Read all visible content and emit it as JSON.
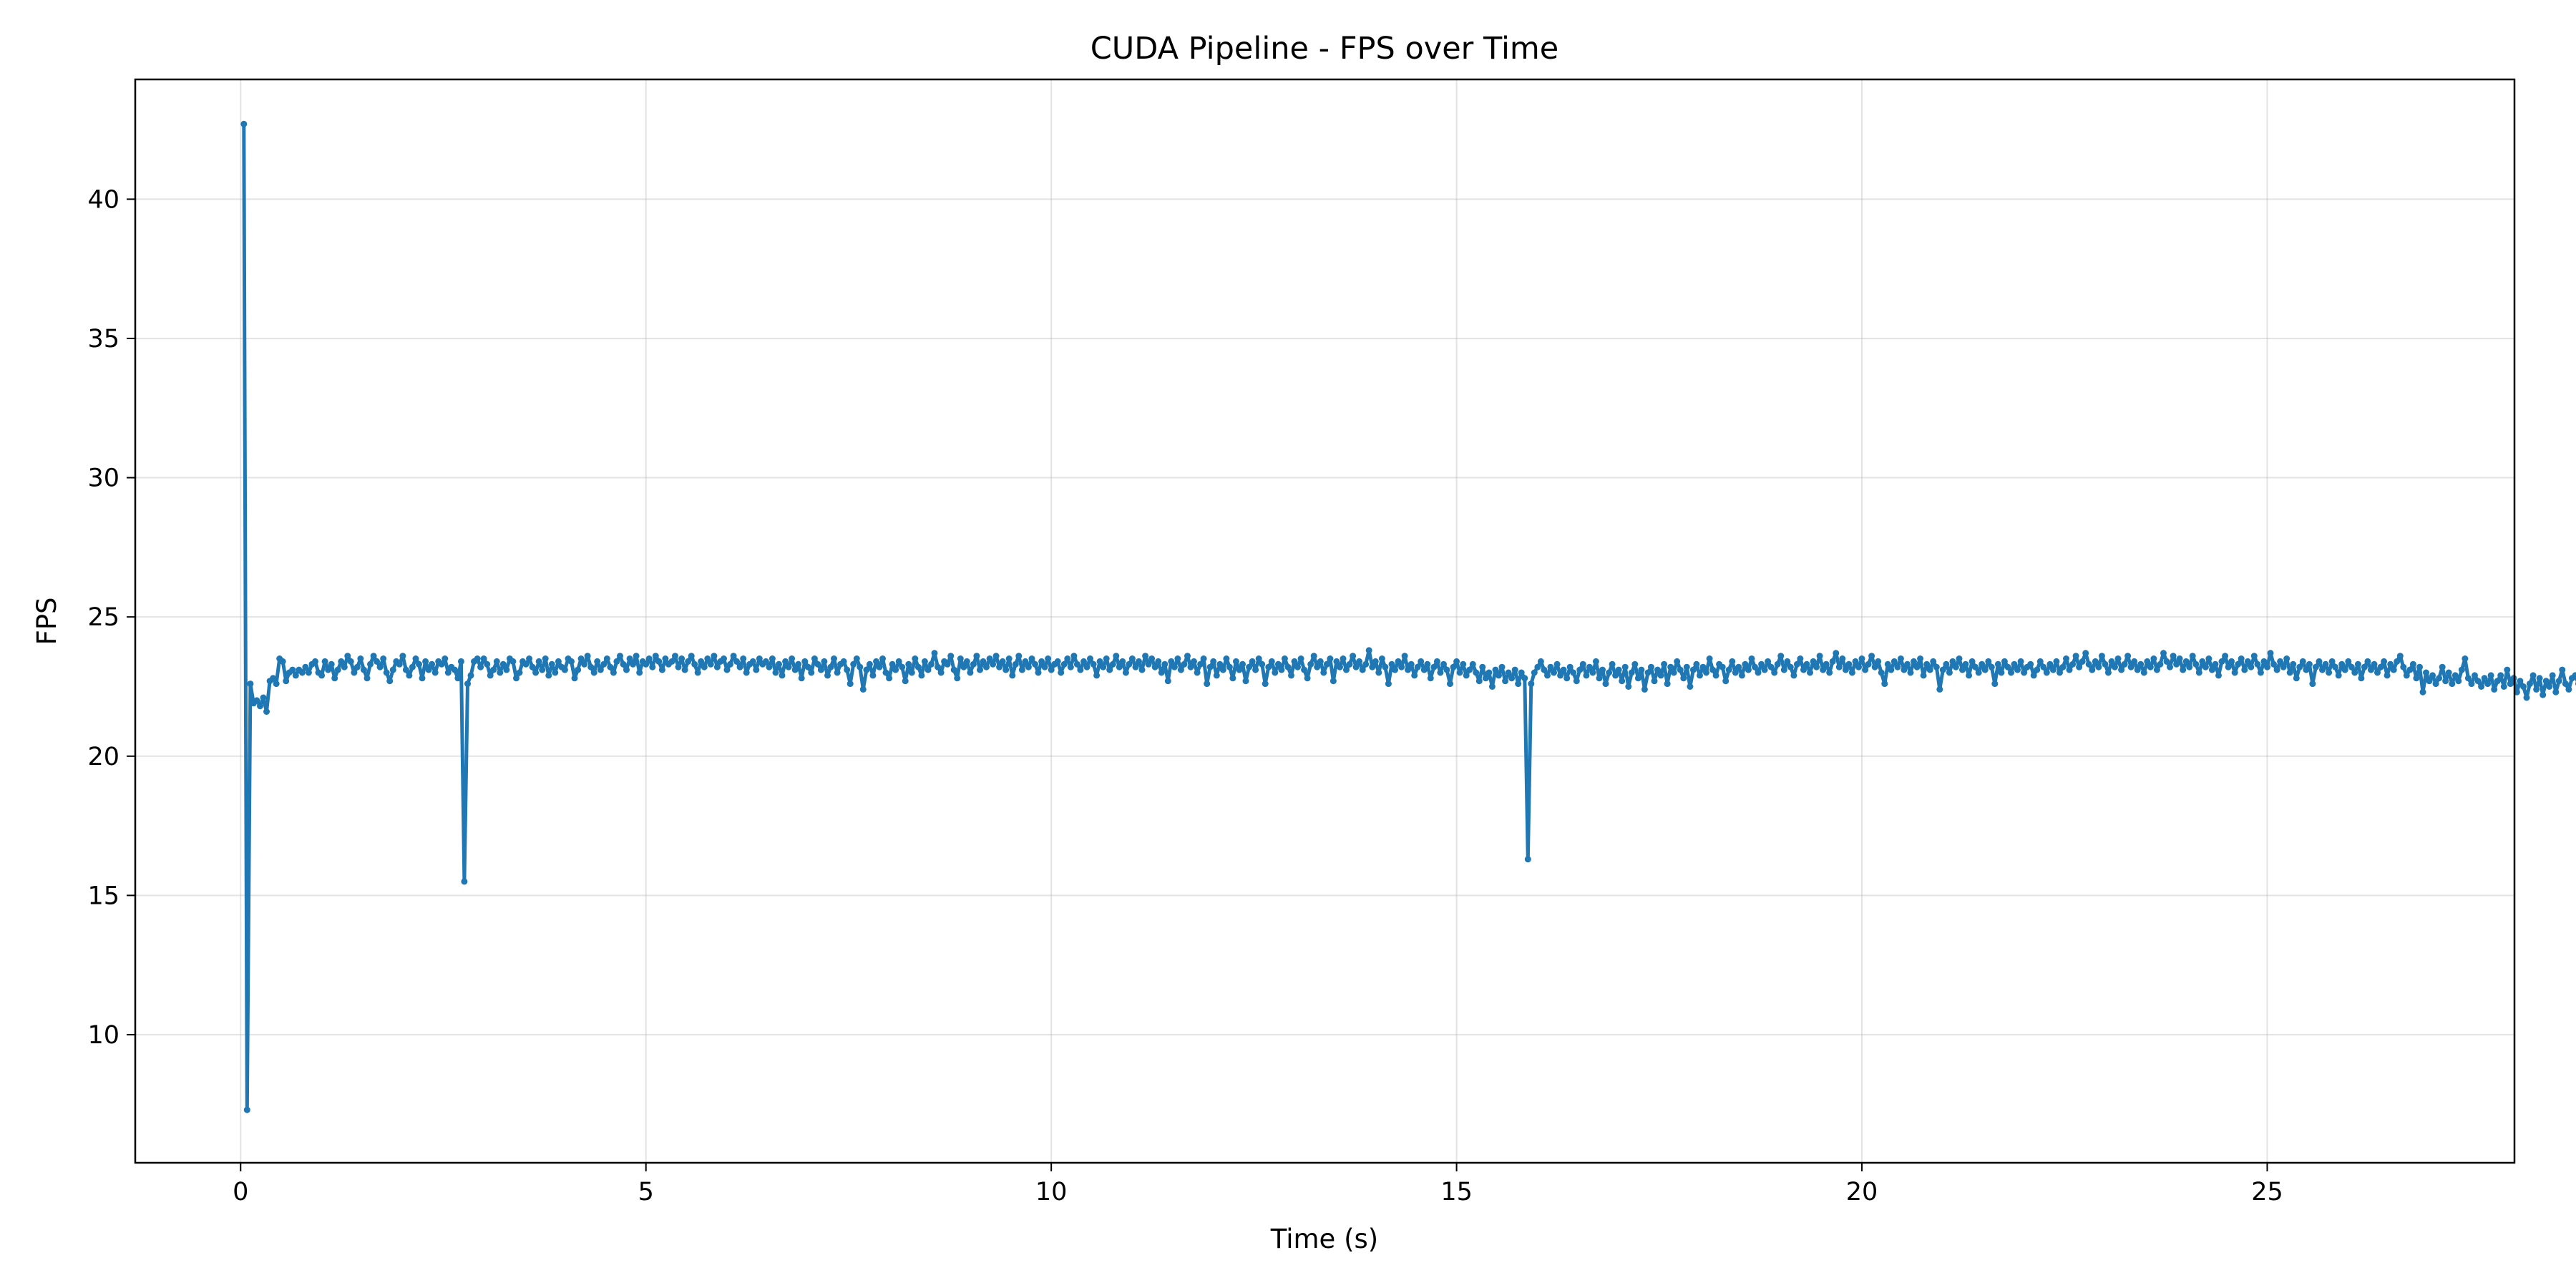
{
  "chart_data": {
    "type": "line",
    "title": "CUDA Pipeline - FPS over Time",
    "xlabel": "Time (s)",
    "ylabel": "FPS",
    "xlim": [
      -1.3,
      28.05
    ],
    "ylim": [
      5.4,
      44.3
    ],
    "xticks": [
      0,
      5,
      10,
      15,
      20,
      25
    ],
    "xtick_labels": [
      "0",
      "5",
      "10",
      "15",
      "20",
      "25"
    ],
    "yticks": [
      10,
      15,
      20,
      25,
      30,
      35,
      40
    ],
    "ytick_labels": [
      "10",
      "15",
      "20",
      "25",
      "30",
      "35",
      "40"
    ],
    "grid": true,
    "legend": "none",
    "color": "#1f77b4",
    "markers": true,
    "series": [
      {
        "x_start": 0.04,
        "x_step": 0.04,
        "values": [
          42.7,
          7.3,
          22.6,
          21.9,
          22.0,
          21.8,
          22.1,
          21.6,
          22.7,
          22.8,
          22.6,
          23.5,
          23.4,
          22.7,
          23.0,
          23.1,
          22.9,
          23.1,
          23.0,
          23.2,
          23.0,
          23.3,
          23.4,
          23.0,
          22.9,
          23.4,
          23.1,
          23.3,
          22.8,
          23.1,
          23.4,
          23.2,
          23.6,
          23.4,
          23.0,
          23.2,
          23.5,
          23.1,
          22.8,
          23.3,
          23.6,
          23.4,
          23.2,
          23.5,
          23.0,
          22.7,
          23.1,
          23.4,
          23.3,
          23.6,
          23.1,
          22.9,
          23.2,
          23.5,
          23.3,
          22.8,
          23.4,
          23.1,
          23.3,
          23.0,
          23.4,
          23.3,
          23.5,
          23.0,
          23.2,
          23.1,
          22.8,
          23.4,
          15.5,
          22.6,
          22.9,
          23.4,
          23.5,
          23.2,
          23.5,
          23.3,
          22.9,
          23.1,
          23.4,
          23.0,
          23.3,
          23.1,
          23.5,
          23.4,
          22.8,
          23.0,
          23.4,
          23.3,
          23.5,
          23.2,
          23.0,
          23.4,
          23.1,
          23.5,
          22.9,
          23.3,
          23.0,
          23.4,
          23.2,
          23.1,
          23.5,
          23.4,
          22.8,
          23.1,
          23.5,
          23.3,
          23.6,
          23.2,
          23.0,
          23.4,
          23.1,
          23.3,
          23.5,
          23.2,
          23.0,
          23.4,
          23.6,
          23.3,
          23.1,
          23.5,
          23.3,
          23.6,
          23.0,
          23.4,
          23.3,
          23.5,
          23.2,
          23.6,
          23.4,
          23.1,
          23.5,
          23.3,
          23.4,
          23.6,
          23.2,
          23.5,
          23.1,
          23.4,
          23.6,
          23.3,
          23.0,
          23.4,
          23.2,
          23.5,
          23.3,
          23.6,
          23.2,
          23.4,
          23.5,
          23.1,
          23.3,
          23.6,
          23.4,
          23.2,
          23.5,
          23.0,
          23.3,
          23.4,
          23.1,
          23.5,
          23.3,
          23.4,
          23.2,
          23.5,
          23.0,
          23.3,
          22.9,
          23.4,
          23.2,
          23.5,
          23.1,
          23.3,
          22.8,
          23.4,
          23.2,
          23.0,
          23.5,
          23.3,
          23.1,
          23.4,
          22.9,
          23.2,
          23.5,
          23.0,
          23.3,
          23.4,
          23.1,
          22.6,
          23.3,
          23.5,
          23.2,
          22.4,
          23.1,
          23.3,
          22.9,
          23.4,
          23.2,
          23.5,
          23.0,
          22.8,
          23.3,
          23.1,
          23.4,
          23.2,
          22.7,
          23.3,
          23.0,
          23.5,
          23.2,
          22.9,
          23.4,
          23.1,
          23.3,
          23.7,
          23.2,
          23.0,
          23.4,
          23.3,
          23.6,
          23.1,
          22.8,
          23.5,
          23.2,
          23.4,
          23.0,
          23.3,
          23.6,
          23.1,
          23.4,
          23.2,
          23.5,
          23.3,
          23.6,
          23.2,
          23.4,
          23.1,
          23.5,
          22.9,
          23.3,
          23.6,
          23.1,
          23.4,
          23.2,
          23.5,
          23.3,
          23.0,
          23.4,
          23.2,
          23.5,
          23.1,
          23.3,
          23.4,
          23.0,
          23.3,
          23.5,
          23.2,
          23.6,
          23.3,
          23.1,
          23.4,
          23.2,
          23.5,
          23.3,
          22.9,
          23.4,
          23.2,
          23.5,
          23.1,
          23.3,
          23.6,
          23.2,
          23.4,
          23.0,
          23.3,
          23.5,
          23.2,
          23.4,
          23.1,
          23.6,
          23.3,
          23.5,
          23.2,
          23.4,
          23.0,
          23.3,
          22.7,
          23.4,
          23.2,
          23.5,
          23.1,
          23.3,
          23.6,
          23.2,
          23.4,
          23.0,
          23.3,
          23.5,
          22.6,
          23.2,
          23.4,
          22.9,
          23.3,
          23.1,
          23.5,
          23.2,
          22.8,
          23.4,
          23.1,
          23.3,
          22.7,
          23.2,
          23.4,
          23.1,
          23.5,
          23.3,
          22.6,
          23.2,
          23.4,
          23.0,
          23.3,
          23.1,
          23.5,
          23.2,
          22.9,
          23.4,
          23.2,
          23.5,
          23.1,
          22.8,
          23.3,
          23.6,
          23.2,
          23.4,
          23.0,
          23.3,
          23.5,
          22.7,
          23.4,
          23.2,
          23.5,
          23.1,
          23.3,
          23.6,
          23.2,
          23.4,
          23.1,
          23.3,
          23.8,
          23.2,
          23.4,
          23.0,
          23.5,
          23.2,
          22.6,
          23.3,
          23.1,
          23.4,
          23.2,
          23.6,
          23.1,
          23.3,
          22.9,
          23.2,
          23.4,
          23.1,
          23.3,
          22.8,
          23.2,
          23.4,
          23.0,
          23.3,
          23.1,
          22.6,
          23.2,
          23.4,
          23.0,
          23.3,
          22.9,
          23.1,
          23.3,
          23.0,
          22.7,
          23.2,
          22.8,
          23.0,
          22.5,
          23.1,
          22.9,
          23.2,
          22.7,
          23.0,
          22.8,
          23.1,
          22.6,
          23.0,
          22.8,
          16.3,
          22.6,
          23.0,
          23.2,
          23.4,
          23.1,
          22.9,
          23.2,
          23.0,
          23.3,
          22.9,
          23.1,
          22.8,
          23.2,
          23.0,
          22.7,
          23.1,
          23.3,
          22.9,
          23.2,
          23.0,
          23.4,
          22.8,
          23.1,
          22.6,
          23.0,
          23.3,
          22.9,
          23.1,
          22.7,
          23.2,
          22.5,
          23.0,
          23.3,
          22.8,
          23.1,
          22.4,
          23.0,
          23.2,
          22.7,
          23.1,
          22.9,
          23.3,
          22.6,
          23.2,
          23.0,
          23.4,
          23.1,
          22.8,
          23.2,
          22.5,
          23.1,
          23.3,
          22.9,
          23.2,
          23.0,
          23.5,
          23.1,
          22.9,
          23.3,
          23.2,
          22.7,
          23.1,
          23.4,
          23.0,
          23.2,
          22.9,
          23.3,
          23.1,
          23.5,
          23.2,
          23.0,
          23.3,
          23.1,
          23.4,
          23.2,
          23.0,
          23.3,
          23.6,
          23.1,
          23.4,
          23.2,
          22.9,
          23.3,
          23.5,
          23.1,
          23.3,
          23.0,
          23.4,
          23.2,
          23.6,
          23.1,
          23.3,
          23.0,
          23.4,
          23.7,
          23.2,
          23.5,
          23.1,
          23.3,
          23.0,
          23.4,
          23.2,
          23.5,
          23.1,
          23.3,
          23.6,
          23.2,
          23.4,
          23.0,
          22.6,
          23.3,
          23.1,
          23.4,
          23.2,
          23.5,
          23.1,
          23.3,
          23.0,
          23.4,
          23.2,
          23.5,
          22.9,
          23.3,
          23.1,
          23.4,
          23.2,
          22.4,
          23.1,
          23.3,
          23.0,
          23.4,
          23.2,
          23.5,
          23.1,
          23.3,
          22.9,
          23.4,
          23.2,
          23.0,
          23.3,
          23.1,
          23.4,
          23.2,
          22.6,
          23.3,
          23.0,
          23.4,
          23.2,
          23.0,
          23.3,
          23.1,
          23.4,
          23.0,
          23.2,
          23.3,
          22.9,
          23.1,
          23.4,
          23.2,
          23.0,
          23.3,
          23.1,
          23.4,
          23.0,
          23.2,
          23.5,
          23.1,
          23.3,
          23.6,
          23.2,
          23.4,
          23.7,
          23.3,
          23.1,
          23.4,
          23.2,
          23.6,
          23.3,
          23.0,
          23.4,
          23.2,
          23.5,
          23.1,
          23.3,
          23.6,
          23.2,
          23.4,
          23.1,
          23.3,
          23.0,
          23.4,
          23.2,
          23.5,
          23.1,
          23.3,
          23.7,
          23.4,
          23.2,
          23.6,
          23.3,
          23.5,
          23.1,
          23.4,
          23.2,
          23.6,
          23.3,
          23.0,
          23.4,
          23.2,
          23.5,
          23.1,
          23.3,
          22.9,
          23.4,
          23.6,
          23.2,
          23.4,
          23.0,
          23.3,
          23.5,
          23.1,
          23.4,
          23.2,
          23.6,
          23.3,
          23.0,
          23.4,
          23.2,
          23.7,
          23.3,
          23.1,
          23.4,
          23.2,
          23.5,
          23.0,
          23.3,
          22.8,
          23.2,
          23.4,
          23.1,
          23.3,
          22.6,
          23.2,
          23.4,
          23.1,
          23.3,
          23.0,
          23.4,
          23.2,
          22.9,
          23.3,
          23.1,
          23.4,
          23.2,
          23.0,
          23.3,
          22.8,
          23.2,
          23.4,
          23.1,
          23.3,
          23.0,
          23.2,
          23.4,
          22.9,
          23.3,
          23.1,
          23.4,
          23.6,
          23.2,
          22.9,
          23.1,
          23.3,
          22.8,
          23.2,
          22.3,
          23.0,
          22.7,
          22.9,
          22.6,
          22.8,
          23.2,
          22.7,
          23.0,
          22.6,
          22.9,
          22.7,
          23.1,
          23.5,
          22.8,
          22.6,
          22.9,
          22.7,
          22.5,
          22.8,
          22.6,
          22.9,
          22.4,
          22.7,
          22.9,
          22.5,
          23.1,
          22.6,
          22.8,
          22.3,
          22.7,
          22.5,
          22.1,
          22.6,
          22.9,
          22.4,
          22.8,
          22.2,
          22.7,
          22.5,
          22.9,
          22.3,
          22.7,
          23.1,
          22.6,
          22.4,
          22.8,
          22.9,
          22.6,
          23.0,
          23.6
        ]
      }
    ]
  }
}
